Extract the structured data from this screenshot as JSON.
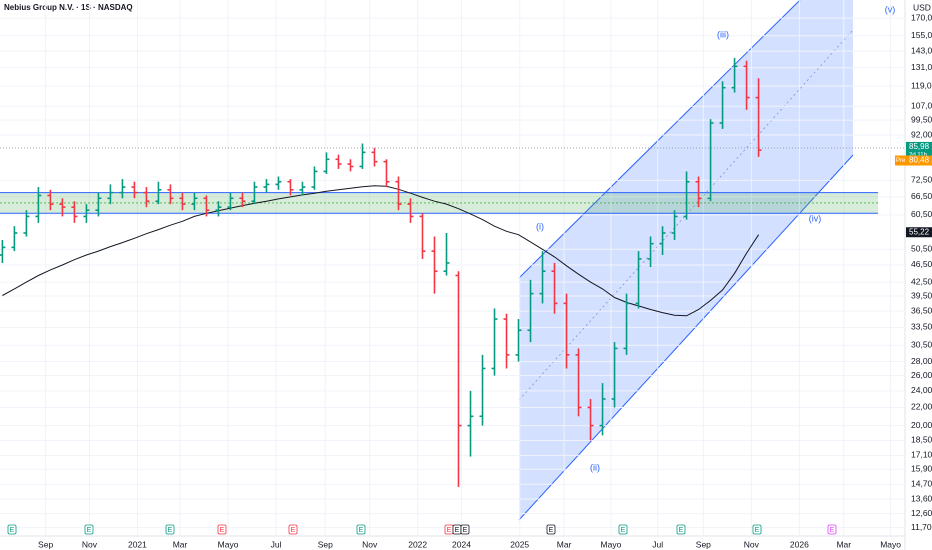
{
  "chart_data": {
    "type": "ohlc",
    "title": "Nebius Group N.V. · 1S · NASDAQ",
    "currency": "USD",
    "log_scale": true,
    "up_color": "#089981",
    "down_color": "#f23645",
    "ma_color": "#131722",
    "xlim": [
      -0.2,
      75.2
    ],
    "ylim": [
      11.2,
      187
    ],
    "xticks": [
      {
        "value": 3.6,
        "label": "Sep"
      },
      {
        "value": 7.25,
        "label": "Nov"
      },
      {
        "value": 11.25,
        "label": "2021"
      },
      {
        "value": 14.8,
        "label": "Mar"
      },
      {
        "value": 18.8,
        "label": "Mayo"
      },
      {
        "value": 22.8,
        "label": "Jul"
      },
      {
        "value": 26.9,
        "label": "Sep"
      },
      {
        "value": 30.6,
        "label": "Nov"
      },
      {
        "value": 34.6,
        "label": "2022"
      },
      {
        "value": 38.25,
        "label": "2024"
      },
      {
        "value": 43.1,
        "label": "2025"
      },
      {
        "value": 46.8,
        "label": "Mar"
      },
      {
        "value": 50.7,
        "label": "Mayo"
      },
      {
        "value": 54.6,
        "label": "Jul"
      },
      {
        "value": 58.4,
        "label": "Sep"
      },
      {
        "value": 62.4,
        "label": "Nov"
      },
      {
        "value": 66.4,
        "label": "2026"
      },
      {
        "value": 70.1,
        "label": "Mar"
      },
      {
        "value": 74,
        "label": "Mayo"
      }
    ],
    "yticks": [
      {
        "value": 170,
        "label": "170,00"
      },
      {
        "value": 155,
        "label": "155,00"
      },
      {
        "value": 143,
        "label": "143,00"
      },
      {
        "value": 131,
        "label": "131,00"
      },
      {
        "value": 119,
        "label": "119,00"
      },
      {
        "value": 107,
        "label": "107,00"
      },
      {
        "value": 99.5,
        "label": "99,50"
      },
      {
        "value": 92,
        "label": "92,00"
      },
      {
        "value": 72.5,
        "label": "72,50"
      },
      {
        "value": 66.5,
        "label": "66,50"
      },
      {
        "value": 60.5,
        "label": "60,50"
      },
      {
        "value": 50.5,
        "label": "50,50"
      },
      {
        "value": 46.5,
        "label": "46,50"
      },
      {
        "value": 42.5,
        "label": "42,50"
      },
      {
        "value": 39.5,
        "label": "39,50"
      },
      {
        "value": 36.5,
        "label": "36,50"
      },
      {
        "value": 33.5,
        "label": "33,50"
      },
      {
        "value": 30.5,
        "label": "30,50"
      },
      {
        "value": 28,
        "label": "28,00"
      },
      {
        "value": 26,
        "label": "26,00"
      },
      {
        "value": 24,
        "label": "24,00"
      },
      {
        "value": 22,
        "label": "22,00"
      },
      {
        "value": 20,
        "label": "20,00"
      },
      {
        "value": 18.5,
        "label": "18,50"
      },
      {
        "value": 17.1,
        "label": "17,10"
      },
      {
        "value": 15.9,
        "label": "15,90"
      },
      {
        "value": 14.7,
        "label": "14,70"
      },
      {
        "value": 13.6,
        "label": "13,60"
      },
      {
        "value": 12.6,
        "label": "12,60"
      },
      {
        "value": 11.7,
        "label": "11,70"
      }
    ],
    "open": [
      49,
      51,
      55,
      60,
      67,
      64,
      63,
      60,
      62,
      66,
      68,
      70,
      68,
      65,
      69,
      66,
      64,
      66,
      62,
      63,
      66,
      65,
      70,
      71,
      72,
      69,
      70,
      76,
      81,
      79,
      78,
      84,
      80,
      72,
      64,
      60,
      50,
      45,
      44,
      20,
      21,
      27,
      35,
      29,
      33,
      40,
      45,
      38,
      29,
      22,
      20,
      23,
      30,
      38,
      48,
      52,
      55,
      60,
      72,
      66,
      98,
      118,
      132,
      112
    ],
    "high": [
      53,
      57,
      62,
      70,
      69,
      66,
      65,
      64,
      68,
      71,
      73,
      72,
      70,
      72,
      71,
      68,
      68,
      67,
      65,
      68,
      68,
      72,
      73,
      74,
      73,
      72,
      78,
      84,
      83,
      81,
      88,
      86,
      81,
      74,
      66,
      61,
      54,
      55,
      45,
      24,
      29,
      37,
      36,
      35,
      43,
      50,
      47,
      40,
      30,
      23,
      25,
      31,
      40,
      50,
      54,
      57,
      62,
      76,
      74,
      100,
      122,
      138,
      136,
      124
    ],
    "low": [
      47,
      50,
      54,
      58,
      62,
      60,
      58,
      58,
      60,
      64,
      66,
      66,
      63,
      64,
      64,
      62,
      62,
      60,
      60,
      62,
      63,
      64,
      68,
      69,
      67,
      67,
      69,
      75,
      77,
      76,
      77,
      78,
      70,
      62,
      58,
      48,
      40,
      44,
      14.5,
      17,
      20,
      26,
      27,
      28,
      31,
      38,
      36,
      27,
      21,
      18.5,
      19,
      22,
      29,
      37,
      46,
      49,
      53,
      59,
      63,
      65,
      95,
      115,
      105,
      82
    ],
    "close": [
      51,
      55,
      60,
      67,
      64,
      63,
      60,
      62,
      66,
      68,
      70,
      68,
      65,
      69,
      66,
      64,
      66,
      62,
      63,
      66,
      65,
      70,
      71,
      72,
      69,
      70,
      76,
      81,
      79,
      78,
      84,
      80,
      72,
      64,
      60,
      50,
      45,
      47,
      20,
      21,
      27,
      35,
      29,
      33,
      40,
      45,
      38,
      29,
      22,
      20,
      23,
      30,
      38,
      48,
      52,
      55,
      60,
      72,
      66,
      98,
      118,
      132,
      112,
      85
    ],
    "moving_average": [
      39.6,
      41,
      42.5,
      44,
      45.3,
      46.5,
      47.8,
      49,
      50,
      51.2,
      52.3,
      53.5,
      54.8,
      56,
      57.3,
      58.5,
      60,
      61,
      61.8,
      62.7,
      63.5,
      64.3,
      65,
      65.8,
      66.5,
      67.2,
      67.8,
      68.5,
      69,
      69.6,
      70.1,
      70.5,
      70.3,
      69.2,
      67.8,
      66.3,
      65,
      64,
      62.5,
      60.8,
      59,
      57,
      55.5,
      54.5,
      52.5,
      50.5,
      48.5,
      46.3,
      44.3,
      42.5,
      41,
      39.2,
      38.2,
      37.5,
      36.8,
      36.2,
      35.7,
      35.6,
      36.8,
      38.6,
      40.8,
      44.5,
      49.5,
      54.5
    ],
    "zone": [
      61,
      68
    ],
    "last_price": {
      "value": 85.98,
      "label": "85,98"
    },
    "countdown": "2d 11h",
    "pre_market": {
      "tag": "Pre",
      "value": 80.48,
      "label": "80,48"
    },
    "ma_last": {
      "value": 55.22,
      "label": "55,22"
    },
    "waves": [
      "(i)",
      "(ii)",
      "(iii)",
      "(iv)",
      "(v)"
    ],
    "earnings": [
      "E",
      "E",
      "E",
      "E",
      "E",
      "E",
      "E",
      "E",
      "E",
      "E",
      "E",
      "E",
      "E",
      "E"
    ]
  }
}
